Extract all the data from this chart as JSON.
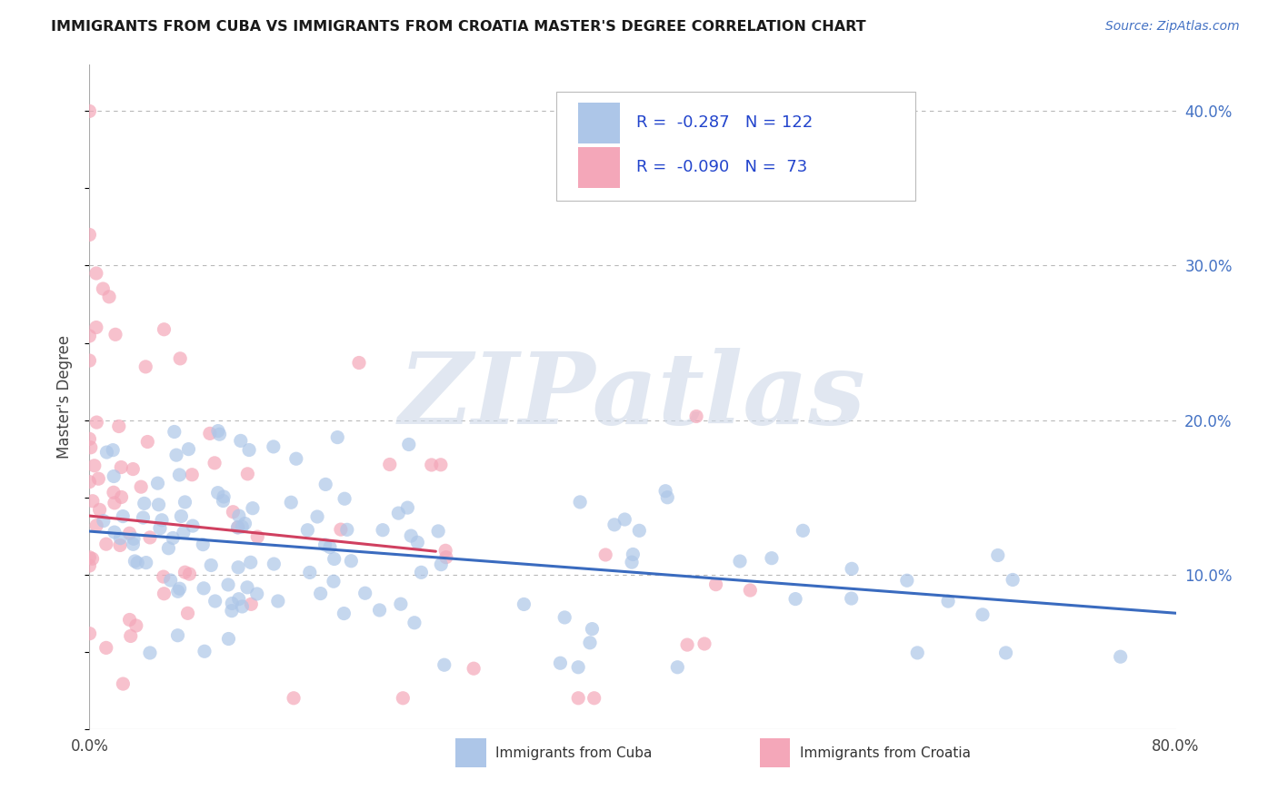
{
  "title": "IMMIGRANTS FROM CUBA VS IMMIGRANTS FROM CROATIA MASTER'S DEGREE CORRELATION CHART",
  "source": "Source: ZipAtlas.com",
  "ylabel": "Master's Degree",
  "xlim": [
    0.0,
    0.8
  ],
  "ylim": [
    0.0,
    0.43
  ],
  "x_tick_positions": [
    0.0,
    0.8
  ],
  "x_tick_labels": [
    "0.0%",
    "80.0%"
  ],
  "y_ticks_right": [
    0.1,
    0.2,
    0.3,
    0.4
  ],
  "y_tick_labels_right": [
    "10.0%",
    "20.0%",
    "30.0%",
    "40.0%"
  ],
  "legend_cuba_R": "-0.287",
  "legend_cuba_N": "122",
  "legend_croatia_R": "-0.090",
  "legend_croatia_N": "73",
  "cuba_color": "#adc6e8",
  "croatia_color": "#f4a7b9",
  "cuba_line_color": "#3a6bbf",
  "croatia_line_color": "#d04060",
  "background_color": "#ffffff",
  "grid_color": "#b8b8b8",
  "watermark_text": "ZIPatlas",
  "watermark_color": "#cdd8e8",
  "cuba_line_x": [
    0.0,
    0.8
  ],
  "cuba_line_y": [
    0.128,
    0.075
  ],
  "croatia_line_x": [
    0.0,
    0.255
  ],
  "croatia_line_y": [
    0.138,
    0.115
  ]
}
